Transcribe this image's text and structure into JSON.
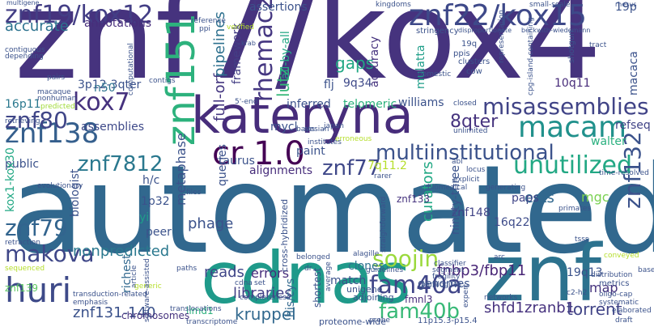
{
  "words": [
    {
      "text": "znf7/kox4",
      "color": "#46337e"
    },
    {
      "text": "automated",
      "color": "#31688e"
    },
    {
      "text": "cdnas",
      "color": "#1f9a8a"
    },
    {
      "text": "znf",
      "color": "#2c728e"
    },
    {
      "text": "kateryna",
      "color": "#472d7b"
    },
    {
      "text": "znf19/kox12",
      "color": "#433e85"
    },
    {
      "text": "znf22/kox15",
      "color": "#3e4989"
    },
    {
      "text": "znf151",
      "color": "#2db27d"
    },
    {
      "text": "cr 1.0",
      "color": "#440154"
    },
    {
      "text": "macam",
      "color": "#21918c"
    },
    {
      "text": "znf138",
      "color": "#355f8d"
    },
    {
      "text": "misassemblies",
      "color": "#414487"
    },
    {
      "text": "multiinstitutional",
      "color": "#3b528b"
    },
    {
      "text": "unutilized",
      "color": "#22a884"
    },
    {
      "text": "znf80",
      "color": "#404688"
    },
    {
      "text": "kox7",
      "color": "#46327e"
    },
    {
      "text": "znf7812",
      "color": "#2a788e"
    },
    {
      "text": "znf77",
      "color": "#3f4889"
    },
    {
      "text": "znf132",
      "color": "#3b528b"
    },
    {
      "text": "huri",
      "color": "#3e4a89"
    },
    {
      "text": "makova",
      "color": "#3f4788"
    },
    {
      "text": "znf79",
      "color": "#32648e"
    },
    {
      "text": "fam40a",
      "color": "#404588"
    },
    {
      "text": "fam40b",
      "color": "#38b977"
    },
    {
      "text": "soojin",
      "color": "#9bd93c"
    },
    {
      "text": "rhemac2",
      "color": "#453781"
    },
    {
      "text": "8qter",
      "color": "#46337e"
    },
    {
      "text": "kruppel",
      "color": "#31688e"
    },
    {
      "text": "libraries",
      "color": "#424086"
    },
    {
      "text": "shfd1zranb1",
      "color": "#46327e"
    },
    {
      "text": "torrent",
      "color": "#414487"
    },
    {
      "text": "nonpredicted",
      "color": "#2a788e"
    },
    {
      "text": "znf131-140",
      "color": "#3b528b"
    },
    {
      "text": "accurate",
      "color": "#2c728e"
    },
    {
      "text": "annotations",
      "color": "#472d7b"
    },
    {
      "text": "full-orf",
      "color": "#453781"
    },
    {
      "text": "pipelines",
      "color": "#2d708e"
    },
    {
      "text": "framework",
      "color": "#433e85"
    },
    {
      "text": "gaps",
      "color": "#22a884"
    },
    {
      "text": "accuracy",
      "color": "#46337e"
    },
    {
      "text": "mulatta",
      "color": "#1f9e89"
    },
    {
      "text": "9q34",
      "color": "#3e4989"
    },
    {
      "text": "flj",
      "color": "#3b528b"
    },
    {
      "text": "lutz",
      "color": "#35b779"
    },
    {
      "text": "10q11",
      "color": "#472c7a"
    },
    {
      "text": "macaca",
      "color": "#3b528b"
    },
    {
      "text": "refseq",
      "color": "#414487"
    },
    {
      "text": "walter",
      "color": "#2ab07f"
    },
    {
      "text": "metaphase",
      "color": "#3b528b"
    },
    {
      "text": "phage",
      "color": "#3b528b"
    },
    {
      "text": "reads",
      "color": "#404688"
    },
    {
      "text": "errors",
      "color": "#472d7b"
    },
    {
      "text": "curators",
      "color": "#22a884"
    },
    {
      "text": "fnbp3/fbp11",
      "color": "#482576"
    },
    {
      "text": "genomes",
      "color": "#3b528b"
    },
    {
      "text": "clones",
      "color": "#2c728e"
    },
    {
      "text": "match",
      "color": "#3b528b"
    },
    {
      "text": "map",
      "color": "#46337e"
    },
    {
      "text": "znf148",
      "color": "#414487"
    },
    {
      "text": "ests",
      "color": "#31688e"
    },
    {
      "text": "mgc",
      "color": "#7ad151"
    },
    {
      "text": "ninety-three",
      "color": "#3b528b"
    },
    {
      "text": "paps",
      "color": "#404688"
    },
    {
      "text": "16q22",
      "color": "#3e4c8a"
    },
    {
      "text": "znf133",
      "color": "#46337e"
    },
    {
      "text": "19q13",
      "color": "#3b528b"
    },
    {
      "text": "fmnl3",
      "color": "#472d7b"
    },
    {
      "text": "inferred",
      "color": "#3b528b"
    },
    {
      "text": "telomeric",
      "color": "#2db27d"
    },
    {
      "text": "williams",
      "color": "#3b528b"
    },
    {
      "text": "3p12-3qter",
      "color": "#3b528b"
    },
    {
      "text": "n50",
      "color": "#2c728e"
    },
    {
      "text": "16p11",
      "color": "#2a788e"
    },
    {
      "text": "assemblies",
      "color": "#3e4989"
    },
    {
      "text": "queries",
      "color": "#3b528b"
    },
    {
      "text": "mycl",
      "color": "#3b528b"
    },
    {
      "text": "paint",
      "color": "#3b528b"
    },
    {
      "text": "taurus",
      "color": "#3b528b"
    },
    {
      "text": "alignments",
      "color": "#472d7b"
    },
    {
      "text": "7q11.2",
      "color": "#b5de2b"
    },
    {
      "text": "public",
      "color": "#3b528b"
    },
    {
      "text": "kox1-kox30",
      "color": "#22a884"
    },
    {
      "text": "h/c",
      "color": "#3b528b"
    },
    {
      "text": "biologist",
      "color": "#3b528b"
    },
    {
      "text": "1p32",
      "color": "#3b528b"
    },
    {
      "text": "yi",
      "color": "#1f9e89"
    },
    {
      "text": "peer",
      "color": "#3b528b"
    },
    {
      "text": "richest",
      "color": "#31688e"
    },
    {
      "text": "his/cys",
      "color": "#31688e"
    },
    {
      "text": "shortest",
      "color": "#3b528b"
    },
    {
      "text": "limd1",
      "color": "#2db27d"
    },
    {
      "text": "proteome-wide",
      "color": "#3b528b"
    },
    {
      "text": "chromosomes",
      "color": "#46337e"
    },
    {
      "text": "all-by-all",
      "color": "#22a884"
    },
    {
      "text": "znf139",
      "color": "#5ec962"
    },
    {
      "text": "cross-hybridized",
      "color": "#3b528b"
    },
    {
      "text": "unigene",
      "color": "#3b528b"
    },
    {
      "text": "adjoining",
      "color": "#3b528b"
    },
    {
      "text": "metrics",
      "color": "#3b528b"
    },
    {
      "text": "11p15.3-p15.4",
      "color": "#3b528b"
    },
    {
      "text": "multigene",
      "color": "#3b528b"
    },
    {
      "text": "19p",
      "color": "#3b528b"
    },
    {
      "text": "rhesus",
      "color": "#3b528b"
    },
    {
      "text": "beckwith-wiedemann",
      "color": "#3b528b"
    },
    {
      "text": "stringency",
      "color": "#3b528b"
    },
    {
      "text": "disproportionate",
      "color": "#3b528b"
    },
    {
      "text": "clusters",
      "color": "#3b528b"
    },
    {
      "text": "cow",
      "color": "#3b528b"
    },
    {
      "text": "ppis",
      "color": "#3b528b"
    },
    {
      "text": "19q",
      "color": "#3b528b"
    },
    {
      "text": "domestic",
      "color": "#3b528b"
    },
    {
      "text": "shotgun",
      "color": "#3b528b"
    },
    {
      "text": "nonhuman",
      "color": "#3b528b"
    },
    {
      "text": "macaque",
      "color": "#3b528b"
    },
    {
      "text": "predicted",
      "color": "#a0da39"
    },
    {
      "text": "evolutionary",
      "color": "#3b528b"
    },
    {
      "text": "retrieving",
      "color": "#3b528b"
    },
    {
      "text": "contigs",
      "color": "#3b528b"
    },
    {
      "text": "computational",
      "color": "#3b528b"
    },
    {
      "text": "kingdoms",
      "color": "#3b528b"
    },
    {
      "text": "assertions",
      "color": "#3b528b"
    },
    {
      "text": "reference",
      "color": "#3b528b"
    },
    {
      "text": "verified",
      "color": "#b5de2b"
    },
    {
      "text": "krab",
      "color": "#3b528b"
    },
    {
      "text": "closed",
      "color": "#3b528b"
    },
    {
      "text": "unlimited",
      "color": "#3b528b"
    },
    {
      "text": "erroneous",
      "color": "#b5de2b"
    },
    {
      "text": "institutes",
      "color": "#3b528b"
    },
    {
      "text": "bayesian",
      "color": "#3b528b"
    },
    {
      "text": "sts",
      "color": "#3b528b"
    },
    {
      "text": "explicit",
      "color": "#3b528b"
    },
    {
      "text": "biomedical",
      "color": "#3b528b"
    },
    {
      "text": "locus",
      "color": "#3b528b"
    },
    {
      "text": "generating",
      "color": "#3b528b"
    },
    {
      "text": "abl",
      "color": "#3b528b"
    },
    {
      "text": "rarer",
      "color": "#3b528b"
    },
    {
      "text": "primates",
      "color": "#3b528b"
    },
    {
      "text": "tsss",
      "color": "#3b528b"
    },
    {
      "text": "files",
      "color": "#3b528b"
    },
    {
      "text": "paths",
      "color": "#3b528b"
    },
    {
      "text": "cdna",
      "color": "#3b528b"
    },
    {
      "text": "set",
      "color": "#3b528b"
    },
    {
      "text": "dr",
      "color": "#3b528b"
    },
    {
      "text": "belonged",
      "color": "#3b528b"
    },
    {
      "text": "article",
      "color": "#3b528b"
    },
    {
      "text": "generic",
      "color": "#b5de2b"
    },
    {
      "text": "sequenced",
      "color": "#b5de2b"
    },
    {
      "text": "retraction",
      "color": "#3b528b"
    },
    {
      "text": "average",
      "color": "#3b528b"
    },
    {
      "text": "alagille",
      "color": "#3b528b"
    },
    {
      "text": "arc",
      "color": "#3b528b"
    },
    {
      "text": "guidelines",
      "color": "#3b528b"
    },
    {
      "text": "paralogues",
      "color": "#3b528b"
    },
    {
      "text": "segment",
      "color": "#3b528b"
    },
    {
      "text": "fragility",
      "color": "#3b528b"
    },
    {
      "text": "classifier",
      "color": "#3b528b"
    },
    {
      "text": "expert",
      "color": "#3b528b"
    },
    {
      "text": "networks",
      "color": "#3b528b"
    },
    {
      "text": "probe",
      "color": "#3b528b"
    },
    {
      "text": "completeness",
      "color": "#3b528b"
    },
    {
      "text": "translocations",
      "color": "#3b528b"
    },
    {
      "text": "emphasis",
      "color": "#3b528b"
    },
    {
      "text": "transduction-related",
      "color": "#3b528b"
    },
    {
      "text": "software-assisted",
      "color": "#3b528b"
    },
    {
      "text": "transcriptome",
      "color": "#3b528b"
    },
    {
      "text": "oligo-cap",
      "color": "#3b528b"
    },
    {
      "text": "systematic",
      "color": "#3b528b"
    },
    {
      "text": "distribution",
      "color": "#3b528b"
    },
    {
      "text": "base",
      "color": "#3b528b"
    },
    {
      "text": "conveyed",
      "color": "#b5de2b"
    },
    {
      "text": "draft",
      "color": "#3b528b"
    },
    {
      "text": "elaborated",
      "color": "#3b528b"
    },
    {
      "text": "c2-h2",
      "color": "#3b528b"
    },
    {
      "text": "time-resolved",
      "color": "#3b528b"
    },
    {
      "text": "5'-end",
      "color": "#3b528b"
    },
    {
      "text": "small-scale",
      "color": "#3b528b"
    },
    {
      "text": "representation",
      "color": "#3b528b"
    },
    {
      "text": "cpg-island-containing",
      "color": "#3b528b"
    },
    {
      "text": "depending",
      "color": "#3b528b"
    },
    {
      "text": "contiguous",
      "color": "#3b528b"
    },
    {
      "text": "pairs",
      "color": "#3b528b"
    },
    {
      "text": "japan",
      "color": "#3b528b"
    },
    {
      "text": "straightforward",
      "color": "#3b528b"
    },
    {
      "text": "ppi",
      "color": "#3b528b"
    },
    {
      "text": "tract",
      "color": "#3b528b"
    }
  ]
}
